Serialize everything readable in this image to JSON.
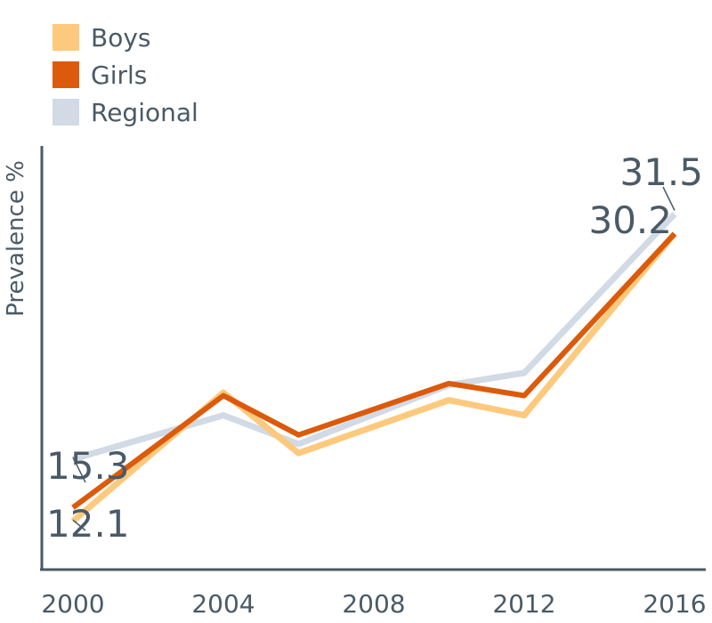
{
  "colors": {
    "axis": "#4a5a66",
    "text": "#4a5a66",
    "boys": "#fdc97c",
    "girls": "#dc5a0b",
    "regional": "#d1dae5"
  },
  "chart_data": {
    "type": "line",
    "title": "",
    "xlabel": "",
    "ylabel": "Prevalence %",
    "xlim": [
      2000,
      2016
    ],
    "ylim": [
      8,
      36
    ],
    "x_ticks": [
      "2000",
      "2004",
      "2008",
      "2012",
      "2016"
    ],
    "grid": false,
    "legend_position": "top-left",
    "series": [
      {
        "name": "Boys",
        "color": "#fdc97c",
        "x": [
          2000,
          2004,
          2006,
          2010,
          2012,
          2016
        ],
        "values": [
          11.2,
          19.7,
          15.7,
          19.2,
          18.2,
          30.2
        ]
      },
      {
        "name": "Girls",
        "color": "#dc5a0b",
        "x": [
          2000,
          2004,
          2006,
          2010,
          2012,
          2016
        ],
        "values": [
          12.1,
          19.5,
          16.9,
          20.3,
          19.5,
          30.2
        ]
      },
      {
        "name": "Regional",
        "color": "#d1dae5",
        "x": [
          2000,
          2004,
          2006,
          2010,
          2012,
          2016
        ],
        "values": [
          15.3,
          18.2,
          16.3,
          20.2,
          21.0,
          31.5
        ]
      }
    ],
    "annotations": [
      {
        "label": "15.3",
        "series": "Regional",
        "x": 2000,
        "value": 15.3
      },
      {
        "label": "12.1",
        "series": "Girls",
        "x": 2000,
        "value": 12.1
      },
      {
        "label": "31.5",
        "series": "Regional",
        "x": 2016,
        "value": 31.5
      },
      {
        "label": "30.2",
        "series": "Boys",
        "x": 2016,
        "value": 30.2
      }
    ]
  }
}
